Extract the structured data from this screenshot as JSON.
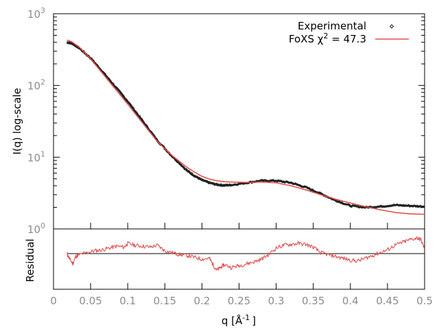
{
  "chart_data": [
    {
      "type": "line",
      "panel": "intensity",
      "ylabel": "I(q) log-scale",
      "yscale": "log",
      "ylim": [
        1,
        1000
      ],
      "xlim": [
        0,
        0.5
      ],
      "y_ticks": [
        {
          "base": "10",
          "exp": "0",
          "value": 1
        },
        {
          "base": "10",
          "exp": "1",
          "value": 10
        },
        {
          "base": "10",
          "exp": "2",
          "value": 100
        },
        {
          "base": "10",
          "exp": "3",
          "value": 1000
        }
      ],
      "legend": {
        "placement": "top-right",
        "entries": [
          {
            "label": "Experimental",
            "color": "#222222",
            "marker": "point"
          },
          {
            "label_prefix": "FoXS χ",
            "label_sup": "2",
            "label_suffix": " = 47.3",
            "color": "#e05050",
            "marker": "line"
          }
        ]
      },
      "series": [
        {
          "name": "Experimental",
          "color": "#222222",
          "x": [
            0.018,
            0.025,
            0.035,
            0.05,
            0.065,
            0.08,
            0.1,
            0.12,
            0.14,
            0.16,
            0.18,
            0.19,
            0.2,
            0.21,
            0.22,
            0.23,
            0.24,
            0.26,
            0.28,
            0.3,
            0.32,
            0.34,
            0.36,
            0.38,
            0.4,
            0.42,
            0.44,
            0.46,
            0.48,
            0.5
          ],
          "y": [
            400,
            385,
            330,
            240,
            160,
            105,
            60,
            32,
            17,
            10.3,
            6.5,
            5.5,
            4.8,
            4.4,
            4.15,
            4.05,
            4.1,
            4.4,
            4.7,
            4.7,
            4.4,
            3.8,
            3.1,
            2.5,
            2.1,
            2.0,
            2.05,
            2.15,
            2.1,
            2.05
          ]
        },
        {
          "name": "FoXS χ2 = 47.3",
          "color": "#e05050",
          "x": [
            0.018,
            0.025,
            0.035,
            0.05,
            0.065,
            0.08,
            0.1,
            0.12,
            0.14,
            0.16,
            0.18,
            0.19,
            0.2,
            0.21,
            0.22,
            0.23,
            0.24,
            0.26,
            0.28,
            0.3,
            0.32,
            0.34,
            0.36,
            0.38,
            0.4,
            0.42,
            0.44,
            0.46,
            0.48,
            0.5
          ],
          "y": [
            430,
            405,
            340,
            235,
            152,
            98,
            55,
            30,
            16.5,
            10.5,
            7.2,
            6.2,
            5.4,
            4.95,
            4.7,
            4.55,
            4.5,
            4.45,
            4.5,
            4.4,
            4.0,
            3.5,
            3.0,
            2.6,
            2.3,
            2.05,
            1.85,
            1.7,
            1.62,
            1.6
          ]
        }
      ]
    },
    {
      "type": "line",
      "panel": "residual",
      "ylabel": "Residual",
      "xlabel_base": "q [Å",
      "xlabel_sup": "-1",
      "xlabel_end": "]",
      "xlim": [
        0,
        0.5
      ],
      "x_ticks": [
        "0",
        "0.05",
        "0.1",
        "0.15",
        "0.2",
        "0.25",
        "0.3",
        "0.35",
        "0.4",
        "0.45",
        "0.5"
      ],
      "x_tick_values": [
        0,
        0.05,
        0.1,
        0.15,
        0.2,
        0.25,
        0.3,
        0.35,
        0.4,
        0.45,
        0.5
      ],
      "reference_line": 0,
      "series": [
        {
          "name": "Residual",
          "color": "#e05050",
          "x": [
            0.018,
            0.022,
            0.026,
            0.03,
            0.035,
            0.045,
            0.055,
            0.065,
            0.075,
            0.085,
            0.095,
            0.1,
            0.11,
            0.12,
            0.13,
            0.14,
            0.15,
            0.16,
            0.17,
            0.18,
            0.19,
            0.2,
            0.21,
            0.215,
            0.22,
            0.225,
            0.23,
            0.24,
            0.25,
            0.26,
            0.27,
            0.28,
            0.29,
            0.3,
            0.31,
            0.32,
            0.33,
            0.34,
            0.35,
            0.36,
            0.37,
            0.38,
            0.39,
            0.4,
            0.41,
            0.42,
            0.43,
            0.44,
            0.45,
            0.46,
            0.47,
            0.48,
            0.49,
            0.495,
            0.5
          ],
          "y": [
            0.0,
            -0.3,
            -0.55,
            -0.15,
            -0.05,
            0.05,
            0.15,
            0.2,
            0.3,
            0.4,
            0.35,
            0.55,
            0.45,
            0.4,
            0.35,
            0.45,
            0.15,
            0.05,
            -0.05,
            -0.1,
            -0.2,
            -0.3,
            -0.25,
            -0.6,
            -0.9,
            -0.75,
            -0.6,
            -0.75,
            -0.65,
            -0.55,
            -0.45,
            -0.3,
            -0.05,
            0.3,
            0.45,
            0.5,
            0.55,
            0.5,
            0.35,
            0.05,
            -0.05,
            -0.15,
            -0.25,
            -0.35,
            -0.4,
            -0.25,
            -0.1,
            0.05,
            0.2,
            0.45,
            0.6,
            0.75,
            0.85,
            0.75,
            0.25
          ]
        }
      ]
    }
  ]
}
